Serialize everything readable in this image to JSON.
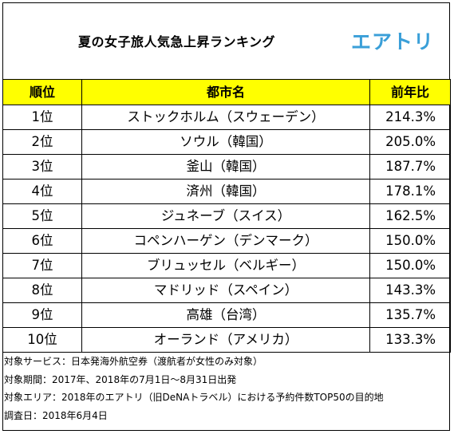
{
  "header": {
    "title": "夏の女子旅人気急上昇ランキング",
    "logo_text": "エアトリ",
    "logo_color": "#3a9fd8"
  },
  "table": {
    "columns": [
      "順位",
      "都市名",
      "前年比"
    ],
    "rows": [
      {
        "rank": "1位",
        "city": "ストックホルム（スウェーデン）",
        "ratio": "214.3%"
      },
      {
        "rank": "2位",
        "city": "ソウル（韓国）",
        "ratio": "205.0%"
      },
      {
        "rank": "3位",
        "city": "釜山（韓国）",
        "ratio": "187.7%"
      },
      {
        "rank": "4位",
        "city": "済州（韓国）",
        "ratio": "178.1%"
      },
      {
        "rank": "5位",
        "city": "ジュネーブ（スイス）",
        "ratio": "162.5%"
      },
      {
        "rank": "6位",
        "city": "コペンハーゲン（デンマーク）",
        "ratio": "150.0%"
      },
      {
        "rank": "7位",
        "city": "ブリュッセル（ベルギー）",
        "ratio": "150.0%"
      },
      {
        "rank": "8位",
        "city": "マドリッド（スペイン）",
        "ratio": "143.3%"
      },
      {
        "rank": "9位",
        "city": "高雄（台湾）",
        "ratio": "135.7%"
      },
      {
        "rank": "10位",
        "city": "オーランド（アメリカ）",
        "ratio": "133.3%"
      }
    ],
    "header_color": "#ffff00"
  },
  "notes": [
    "対象サービス：日本発海外航空券（渡航者が女性のみ対象）",
    "対象期間：2017年、2018年の7月1日～8月31日出発",
    "対象エリア：2018年のエアトリ（旧DeNAトラベル）における予約件数TOP50の目的地",
    "調査日：2018年6月4日"
  ]
}
